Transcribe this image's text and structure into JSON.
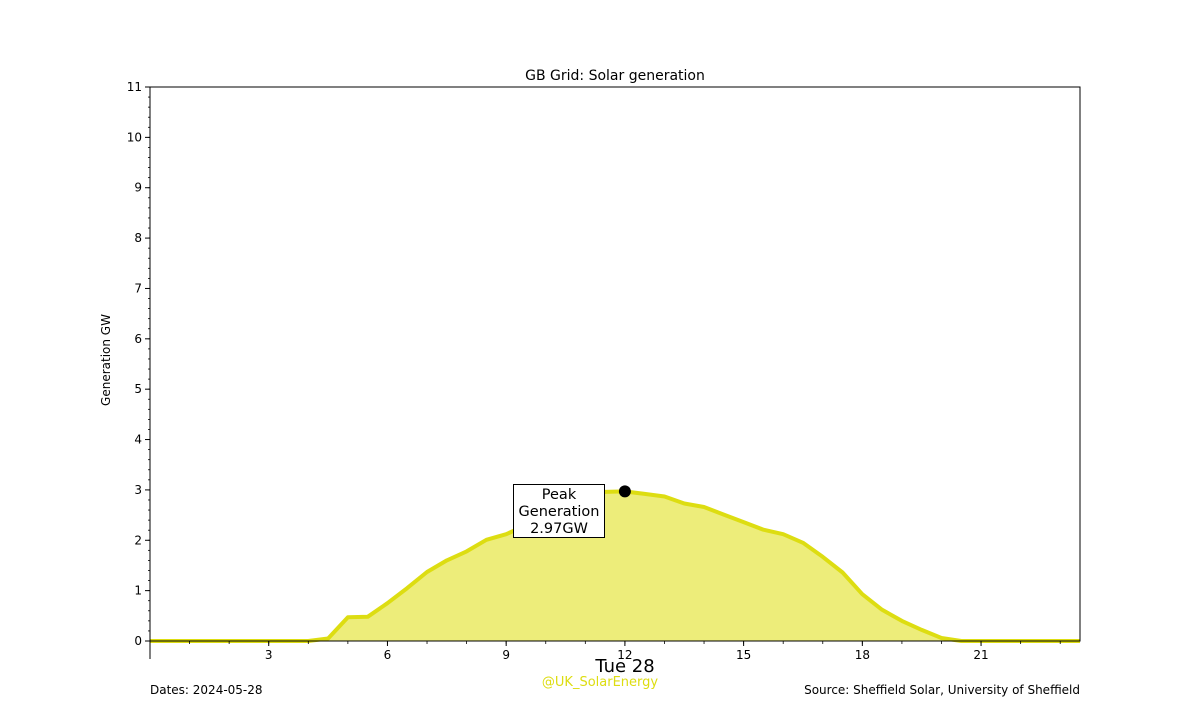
{
  "chart_data": {
    "type": "area",
    "title": "GB Grid: Solar generation",
    "ylabel": "Generation GW",
    "xlabel": "Tue 28",
    "xlim": [
      0,
      23.5
    ],
    "ylim": [
      0,
      11
    ],
    "x_ticks": [
      3,
      6,
      9,
      12,
      15,
      18,
      21
    ],
    "y_ticks": [
      0,
      1,
      2,
      3,
      4,
      5,
      6,
      7,
      8,
      9,
      10,
      11
    ],
    "grid": false,
    "series": [
      {
        "x": [
          0,
          0.5,
          1,
          1.5,
          2,
          2.5,
          3,
          3.5,
          4,
          4.5,
          5,
          5.5,
          6,
          6.5,
          7,
          7.5,
          8,
          8.5,
          9,
          9.5,
          10,
          10.5,
          11,
          11.5,
          12,
          12.5,
          13,
          13.5,
          14,
          14.5,
          15,
          15.5,
          16,
          16.5,
          17,
          17.5,
          18,
          18.5,
          19,
          19.5,
          20,
          20.5,
          21,
          21.5,
          22,
          22.5,
          23,
          23.5
        ],
        "y": [
          0,
          0,
          0,
          0,
          0,
          0,
          0,
          0,
          0,
          0.05,
          0.47,
          0.48,
          0.75,
          1.05,
          1.37,
          1.6,
          1.78,
          2.01,
          2.12,
          2.3,
          2.5,
          2.7,
          2.85,
          2.96,
          2.97,
          2.92,
          2.87,
          2.73,
          2.66,
          2.51,
          2.36,
          2.21,
          2.12,
          1.95,
          1.67,
          1.36,
          0.93,
          0.62,
          0.4,
          0.22,
          0.06,
          0,
          0,
          0,
          0,
          0,
          0,
          0
        ],
        "color": "#dddd11",
        "fill": "#eded7a"
      }
    ],
    "annotations": [
      {
        "x": 12,
        "y": 2.97,
        "lines": [
          "Peak",
          "Generation",
          "2.97GW"
        ]
      }
    ]
  },
  "footer": {
    "dates": "Dates: 2024-05-28",
    "source": "Source: Sheffield Solar, University of Sheffield",
    "handle": "@UK_SolarEnergy"
  },
  "colors": {
    "line": "#dddd11",
    "fill": "#eded7a",
    "handle": "#dddd11"
  }
}
